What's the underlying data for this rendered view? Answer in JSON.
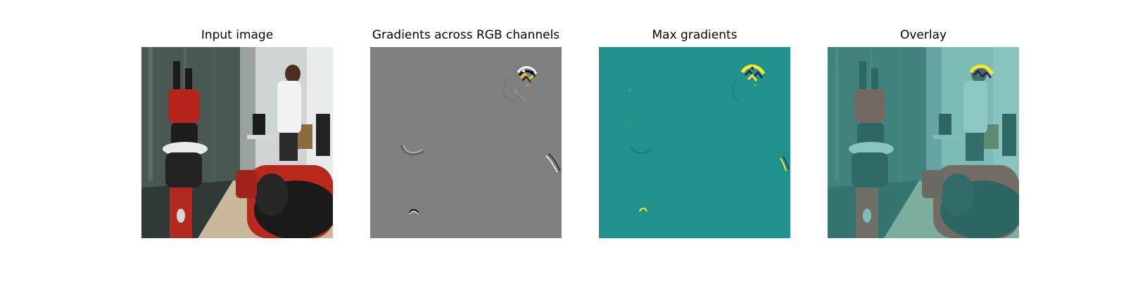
{
  "figure": {
    "panels": [
      {
        "title": "Input image",
        "kind": "photo"
      },
      {
        "title": "Gradients across RGB channels",
        "kind": "rgb-gradients"
      },
      {
        "title": "Max gradients",
        "kind": "max-gradients"
      },
      {
        "title": "Overlay",
        "kind": "overlay"
      }
    ]
  },
  "colors": {
    "gray_background": "#808080",
    "teal_background": "#21918c",
    "highlight_yellow": "#fde725",
    "highlight_dark": "#2b1b5a",
    "overlay_tint": "#3aa6a0"
  }
}
